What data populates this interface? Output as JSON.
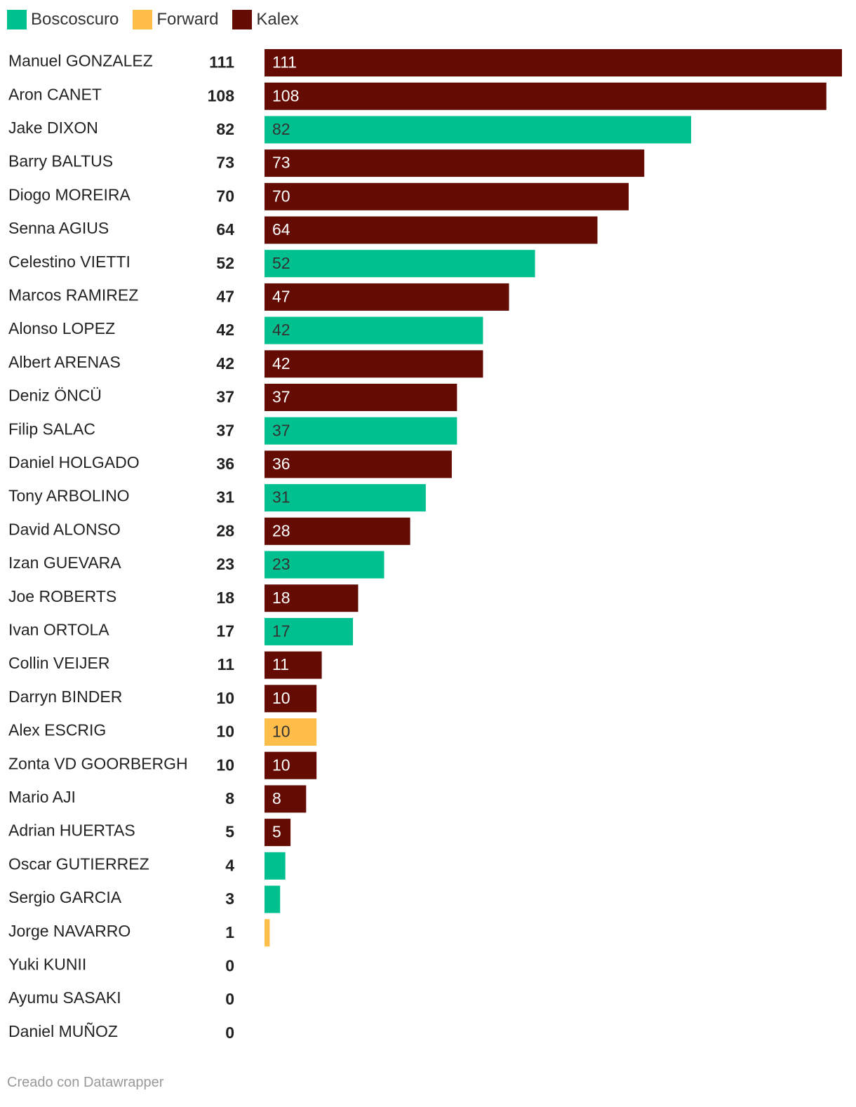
{
  "colors": {
    "Boscoscuro": "#00c08f",
    "Forward": "#ffbd4a",
    "Kalex": "#640b03"
  },
  "chart_data": {
    "type": "bar",
    "orientation": "horizontal",
    "legend": [
      "Boscoscuro",
      "Forward",
      "Kalex"
    ],
    "legend_position": "top-left",
    "grid": false,
    "xlim": [
      0,
      111
    ],
    "rows": [
      {
        "rider": "Manuel GONZALEZ",
        "value": 111,
        "team": "Kalex"
      },
      {
        "rider": "Aron CANET",
        "value": 108,
        "team": "Kalex"
      },
      {
        "rider": "Jake DIXON",
        "value": 82,
        "team": "Boscoscuro"
      },
      {
        "rider": "Barry BALTUS",
        "value": 73,
        "team": "Kalex"
      },
      {
        "rider": "Diogo MOREIRA",
        "value": 70,
        "team": "Kalex"
      },
      {
        "rider": "Senna AGIUS",
        "value": 64,
        "team": "Kalex"
      },
      {
        "rider": "Celestino VIETTI",
        "value": 52,
        "team": "Boscoscuro"
      },
      {
        "rider": "Marcos RAMIREZ",
        "value": 47,
        "team": "Kalex"
      },
      {
        "rider": "Alonso LOPEZ",
        "value": 42,
        "team": "Boscoscuro"
      },
      {
        "rider": "Albert ARENAS",
        "value": 42,
        "team": "Kalex"
      },
      {
        "rider": "Deniz ÖNCÜ",
        "value": 37,
        "team": "Kalex"
      },
      {
        "rider": "Filip SALAC",
        "value": 37,
        "team": "Boscoscuro"
      },
      {
        "rider": "Daniel HOLGADO",
        "value": 36,
        "team": "Kalex"
      },
      {
        "rider": "Tony ARBOLINO",
        "value": 31,
        "team": "Boscoscuro"
      },
      {
        "rider": "David ALONSO",
        "value": 28,
        "team": "Kalex"
      },
      {
        "rider": "Izan GUEVARA",
        "value": 23,
        "team": "Boscoscuro"
      },
      {
        "rider": "Joe ROBERTS",
        "value": 18,
        "team": "Kalex"
      },
      {
        "rider": "Ivan ORTOLA",
        "value": 17,
        "team": "Boscoscuro"
      },
      {
        "rider": "Collin VEIJER",
        "value": 11,
        "team": "Kalex"
      },
      {
        "rider": "Darryn BINDER",
        "value": 10,
        "team": "Kalex"
      },
      {
        "rider": "Alex ESCRIG",
        "value": 10,
        "team": "Forward"
      },
      {
        "rider": "Zonta VD GOORBERGH",
        "value": 10,
        "team": "Kalex"
      },
      {
        "rider": "Mario AJI",
        "value": 8,
        "team": "Kalex"
      },
      {
        "rider": "Adrian HUERTAS",
        "value": 5,
        "team": "Kalex"
      },
      {
        "rider": "Oscar GUTIERREZ",
        "value": 4,
        "team": "Boscoscuro"
      },
      {
        "rider": "Sergio GARCIA",
        "value": 3,
        "team": "Boscoscuro"
      },
      {
        "rider": "Jorge NAVARRO",
        "value": 1,
        "team": "Forward"
      },
      {
        "rider": "Yuki KUNII",
        "value": 0,
        "team": null
      },
      {
        "rider": "Ayumu SASAKI",
        "value": 0,
        "team": null
      },
      {
        "rider": "Daniel MUÑOZ",
        "value": 0,
        "team": null
      }
    ]
  },
  "footer": {
    "credit": "Creado con Datawrapper"
  }
}
